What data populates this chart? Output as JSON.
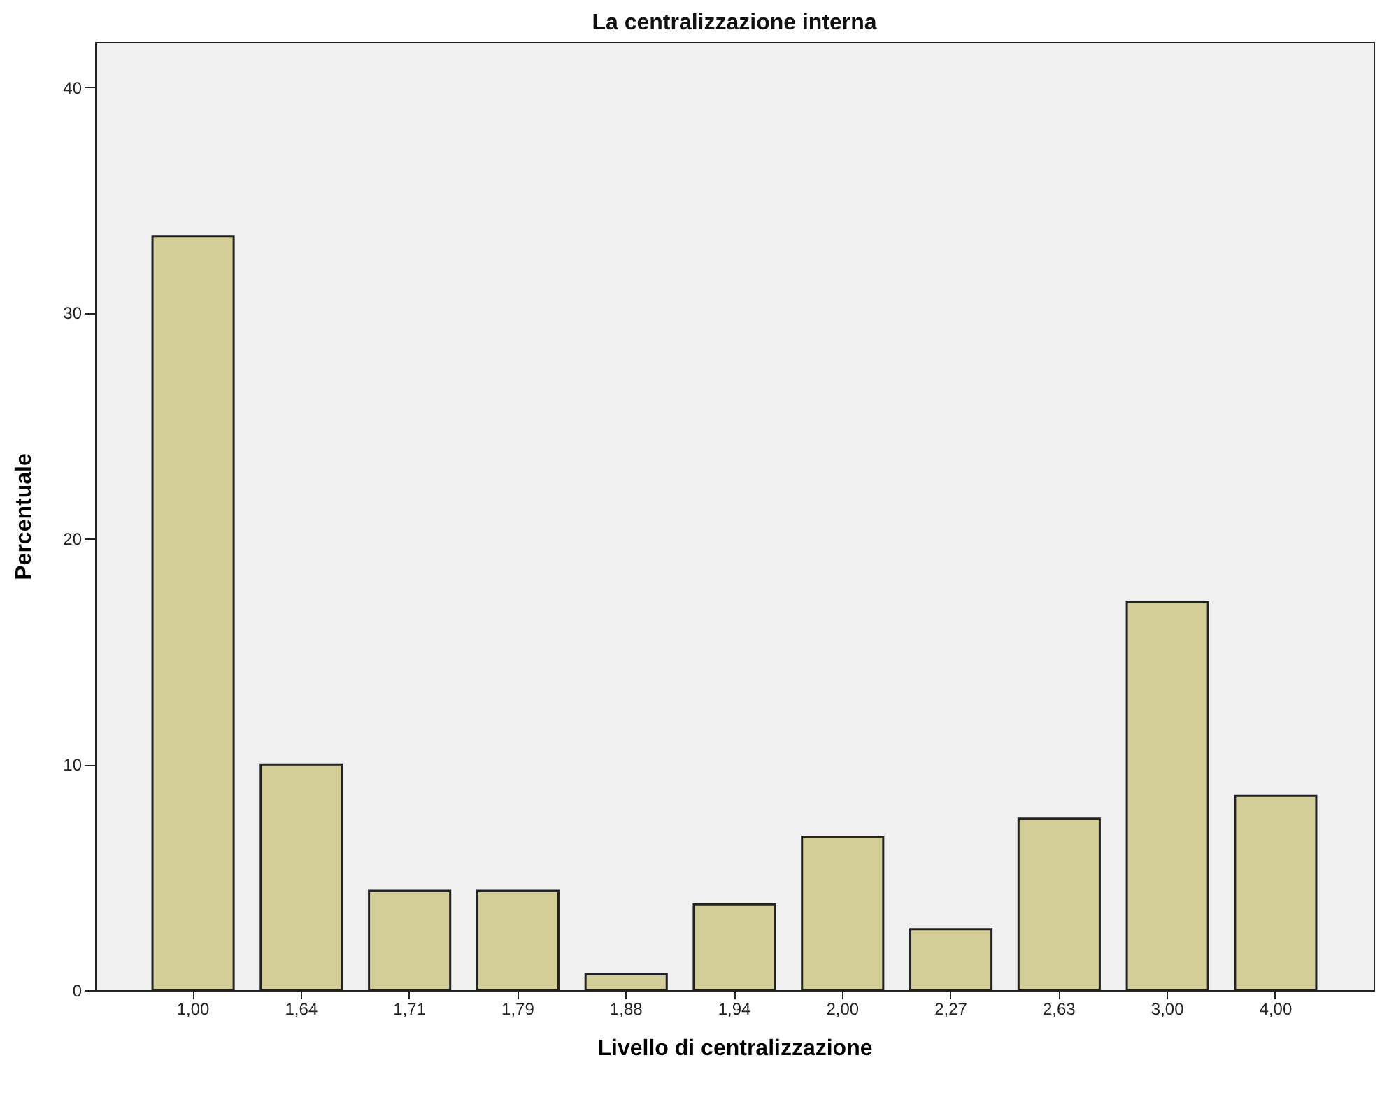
{
  "chart_data": {
    "type": "bar",
    "title": "La centralizzazione interna",
    "xlabel": "Livello di centralizzazione",
    "ylabel": "Percentuale",
    "categories": [
      "1,00",
      "1,64",
      "1,71",
      "1,79",
      "1,88",
      "1,94",
      "2,00",
      "2,27",
      "2,63",
      "3,00",
      "4,00"
    ],
    "values": [
      33.4,
      10.0,
      4.4,
      4.4,
      0.7,
      3.8,
      6.8,
      2.7,
      7.6,
      17.2,
      8.6
    ],
    "color": "#d3ce97",
    "ylim": [
      0,
      42
    ],
    "yticks": [
      0,
      10,
      20,
      30,
      40
    ],
    "grid": false
  }
}
